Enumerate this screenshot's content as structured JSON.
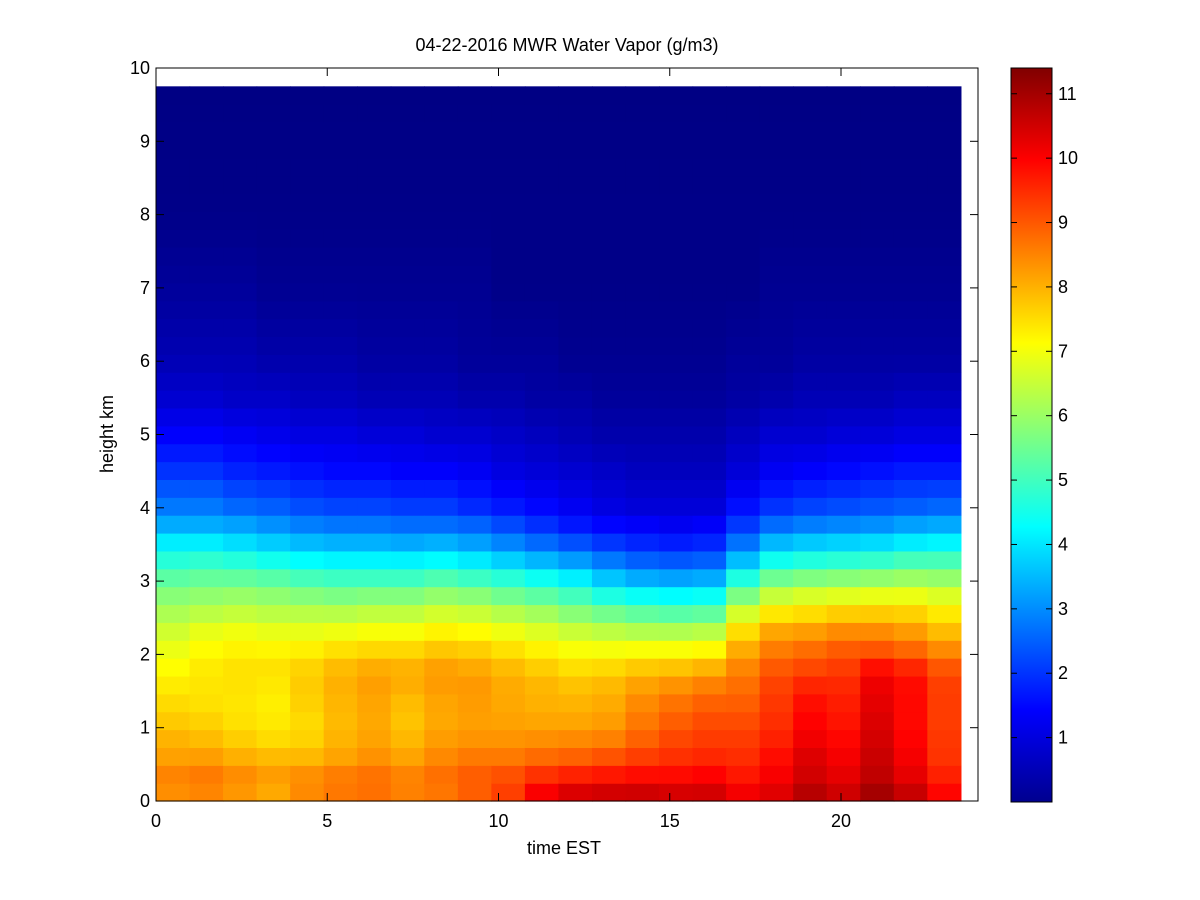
{
  "chart_data": {
    "type": "heatmap",
    "title": "04-22-2016 MWR Water Vapor (g/m3)",
    "xlabel": "time EST",
    "ylabel": "height km",
    "xlim": [
      0,
      24
    ],
    "ylim": [
      0,
      10
    ],
    "x_ticks": [
      0,
      5,
      10,
      15,
      20
    ],
    "y_ticks": [
      0,
      1,
      2,
      3,
      4,
      5,
      6,
      7,
      8,
      9,
      10
    ],
    "x": [
      0.25,
      1.25,
      2.25,
      3.25,
      4.25,
      5.25,
      6.25,
      7.25,
      8.25,
      9.25,
      10.25,
      11.25,
      12.25,
      13.25,
      14.25,
      15.25,
      16.25,
      17.25,
      18.25,
      19.25,
      20.25,
      21.25,
      22.25,
      23.25
    ],
    "time_range": [
      0,
      23.5
    ],
    "height_max": 9.75,
    "colorbar": {
      "colormap": "jet",
      "range": [
        0,
        11.4
      ],
      "ticks": [
        1,
        2,
        3,
        4,
        5,
        6,
        7,
        8,
        9,
        10,
        11
      ]
    },
    "grid": false,
    "profile_heights_km": [
      0.05,
      0.3,
      0.55,
      0.75,
      1.0,
      1.25,
      1.5,
      1.75,
      2.0,
      2.25,
      2.5,
      2.75,
      3.0,
      3.25,
      3.5,
      3.75,
      4.0,
      4.5,
      5.0,
      5.5,
      6.0,
      7.0,
      8.0,
      9.75
    ],
    "values_by_time": [
      [
        8.3,
        8.6,
        8.2,
        8.1,
        7.8,
        7.6,
        7.4,
        7.2,
        7.0,
        6.7,
        6.3,
        5.9,
        5.4,
        4.8,
        4.2,
        3.4,
        2.8,
        2.0,
        1.4,
        0.9,
        0.6,
        0.3,
        0.1,
        0.05
      ],
      [
        8.4,
        8.7,
        8.3,
        8.0,
        7.7,
        7.5,
        7.4,
        7.4,
        7.2,
        7.0,
        6.5,
        6.0,
        5.5,
        4.9,
        4.2,
        3.4,
        2.8,
        2.0,
        1.4,
        0.9,
        0.6,
        0.3,
        0.1,
        0.05
      ],
      [
        8.2,
        8.5,
        8.1,
        7.8,
        7.5,
        7.4,
        7.4,
        7.5,
        7.3,
        7.1,
        6.6,
        6.1,
        5.5,
        4.8,
        4.0,
        3.3,
        2.6,
        1.8,
        1.3,
        0.8,
        0.6,
        0.3,
        0.1,
        0.05
      ],
      [
        8.0,
        8.3,
        8.0,
        7.6,
        7.4,
        7.3,
        7.3,
        7.5,
        7.3,
        7.0,
        6.5,
        6.0,
        5.4,
        4.6,
        3.8,
        3.1,
        2.5,
        1.7,
        1.2,
        0.8,
        0.5,
        0.2,
        0.1,
        0.05
      ],
      [
        8.4,
        8.5,
        8.0,
        7.7,
        7.5,
        7.6,
        7.7,
        7.7,
        7.4,
        7.0,
        6.5,
        5.9,
        5.2,
        4.4,
        3.6,
        2.9,
        2.3,
        1.6,
        1.1,
        0.7,
        0.5,
        0.2,
        0.1,
        0.05
      ],
      [
        8.6,
        8.7,
        8.2,
        8.0,
        7.9,
        7.9,
        8.0,
        8.0,
        7.6,
        7.1,
        6.5,
        5.8,
        5.1,
        4.3,
        3.5,
        2.8,
        2.2,
        1.5,
        1.1,
        0.7,
        0.5,
        0.2,
        0.1,
        0.05
      ],
      [
        8.7,
        8.8,
        8.4,
        8.2,
        8.1,
        8.1,
        8.2,
        8.2,
        7.7,
        7.2,
        6.6,
        5.9,
        5.1,
        4.3,
        3.5,
        2.8,
        2.2,
        1.5,
        1.0,
        0.6,
        0.4,
        0.2,
        0.1,
        0.05
      ],
      [
        8.5,
        8.6,
        8.2,
        8.0,
        7.8,
        7.8,
        8.0,
        8.1,
        7.7,
        7.2,
        6.6,
        5.9,
        5.1,
        4.3,
        3.4,
        2.7,
        2.1,
        1.4,
        1.0,
        0.6,
        0.4,
        0.2,
        0.1,
        0.05
      ],
      [
        8.6,
        8.8,
        8.5,
        8.3,
        8.1,
        8.1,
        8.2,
        8.3,
        7.9,
        7.4,
        6.8,
        6.1,
        5.3,
        4.4,
        3.5,
        2.7,
        2.1,
        1.4,
        0.9,
        0.6,
        0.4,
        0.2,
        0.1,
        0.05
      ],
      [
        8.9,
        9.0,
        8.7,
        8.4,
        8.2,
        8.2,
        8.3,
        8.2,
        7.8,
        7.3,
        6.7,
        6.0,
        5.1,
        4.2,
        3.3,
        2.6,
        1.9,
        1.3,
        0.9,
        0.5,
        0.3,
        0.2,
        0.1,
        0.05
      ],
      [
        9.3,
        9.2,
        8.7,
        8.4,
        8.2,
        8.1,
        8.1,
        8.0,
        7.6,
        7.1,
        6.5,
        5.7,
        4.9,
        3.9,
        3.0,
        2.3,
        1.7,
        1.1,
        0.8,
        0.5,
        0.3,
        0.1,
        0.1,
        0.05
      ],
      [
        10.2,
        9.6,
        8.9,
        8.5,
        8.2,
        8.0,
        8.0,
        7.8,
        7.4,
        6.9,
        6.3,
        5.5,
        4.6,
        3.6,
        2.7,
        2.0,
        1.5,
        1.0,
        0.7,
        0.4,
        0.3,
        0.1,
        0.1,
        0.05
      ],
      [
        10.6,
        9.8,
        9.0,
        8.6,
        8.2,
        8.0,
        7.9,
        7.6,
        7.2,
        6.7,
        6.0,
        5.2,
        4.3,
        3.3,
        2.4,
        1.7,
        1.3,
        0.9,
        0.6,
        0.4,
        0.2,
        0.1,
        0.1,
        0.05
      ],
      [
        10.7,
        9.9,
        9.2,
        8.7,
        8.3,
        8.1,
        8.0,
        7.7,
        7.2,
        6.6,
        5.8,
        4.8,
        3.8,
        2.9,
        2.1,
        1.5,
        1.1,
        0.8,
        0.5,
        0.3,
        0.2,
        0.1,
        0.1,
        0.05
      ],
      [
        10.7,
        10.0,
        9.4,
        9.0,
        8.7,
        8.5,
        8.3,
        7.9,
        7.3,
        6.5,
        5.6,
        4.6,
        3.5,
        2.6,
        1.9,
        1.4,
        1.0,
        0.7,
        0.5,
        0.3,
        0.2,
        0.1,
        0.1,
        0.05
      ],
      [
        10.6,
        10.0,
        9.5,
        9.3,
        9.0,
        8.8,
        8.5,
        8.0,
        7.3,
        6.5,
        5.5,
        4.5,
        3.4,
        2.5,
        1.8,
        1.3,
        1.0,
        0.7,
        0.5,
        0.3,
        0.2,
        0.1,
        0.1,
        0.05
      ],
      [
        10.6,
        10.1,
        9.6,
        9.4,
        9.2,
        9.0,
        8.7,
        8.2,
        7.4,
        6.6,
        5.6,
        4.6,
        3.5,
        2.6,
        1.9,
        1.4,
        1.0,
        0.7,
        0.5,
        0.3,
        0.2,
        0.1,
        0.1,
        0.05
      ],
      [
        10.2,
        9.8,
        9.5,
        9.4,
        9.2,
        9.0,
        8.8,
        8.6,
        8.2,
        7.7,
        6.9,
        5.9,
        4.8,
        3.7,
        2.8,
        2.1,
        1.6,
        1.0,
        0.7,
        0.4,
        0.3,
        0.1,
        0.1,
        0.05
      ],
      [
        10.4,
        10.1,
        9.9,
        9.7,
        9.5,
        9.4,
        9.3,
        9.1,
        8.7,
        8.3,
        7.6,
        6.7,
        5.7,
        4.6,
        3.6,
        2.7,
        2.0,
        1.3,
        0.9,
        0.5,
        0.3,
        0.2,
        0.1,
        0.05
      ],
      [
        10.9,
        10.5,
        10.4,
        10.2,
        10.0,
        9.9,
        9.7,
        9.3,
        8.9,
        8.4,
        7.7,
        6.9,
        5.9,
        4.8,
        3.8,
        2.9,
        2.2,
        1.4,
        0.9,
        0.6,
        0.4,
        0.2,
        0.1,
        0.05
      ],
      [
        10.6,
        10.3,
        10.1,
        10.0,
        9.8,
        9.7,
        9.6,
        9.4,
        9.1,
        8.6,
        7.9,
        7.0,
        6.0,
        4.9,
        3.9,
        3.0,
        2.3,
        1.5,
        1.0,
        0.6,
        0.4,
        0.2,
        0.1,
        0.05
      ],
      [
        11.1,
        10.7,
        10.6,
        10.5,
        10.4,
        10.3,
        10.2,
        10.1,
        9.2,
        8.6,
        7.9,
        7.1,
        6.1,
        5.0,
        4.0,
        3.1,
        2.4,
        1.6,
        1.0,
        0.6,
        0.4,
        0.2,
        0.1,
        0.05
      ],
      [
        10.7,
        10.3,
        10.1,
        10.0,
        9.9,
        9.9,
        9.9,
        9.8,
        9.0,
        8.4,
        7.8,
        7.1,
        6.2,
        5.2,
        4.2,
        3.3,
        2.5,
        1.7,
        1.1,
        0.7,
        0.4,
        0.2,
        0.1,
        0.05
      ],
      [
        10.0,
        9.7,
        9.4,
        9.4,
        9.3,
        9.3,
        9.3,
        9.2,
        8.6,
        8.0,
        7.5,
        6.9,
        6.1,
        5.2,
        4.3,
        3.4,
        2.6,
        1.7,
        1.1,
        0.7,
        0.4,
        0.2,
        0.1,
        0.05
      ]
    ]
  }
}
